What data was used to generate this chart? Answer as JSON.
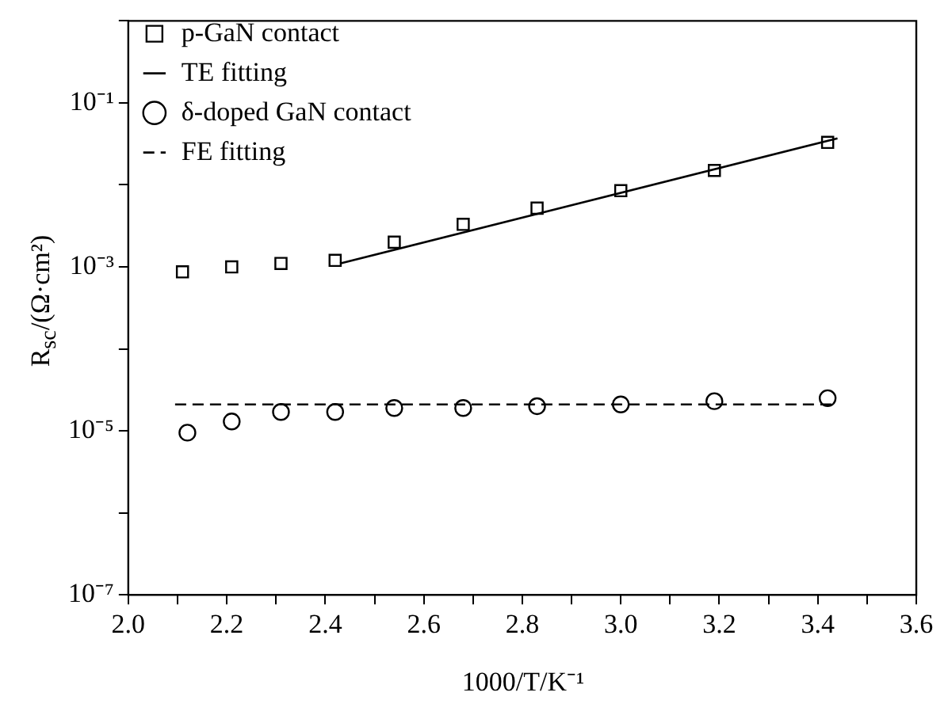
{
  "chart_data": {
    "type": "scatter",
    "xlabel": "1000/T/K⁻¹",
    "ylabel": "R$_{sc}$/(Ω·cm²)",
    "series": [
      {
        "name": "p-GaN contact",
        "marker": "square",
        "color": "#000000",
        "x": [
          2.11,
          2.21,
          2.31,
          2.42,
          2.54,
          2.68,
          2.83,
          3.0,
          3.19,
          3.42
        ],
        "values": [
          0.00087,
          0.001,
          0.0011,
          0.0012,
          0.002,
          0.0033,
          0.0052,
          0.0085,
          0.015,
          0.033
        ]
      },
      {
        "name": "TE fitting",
        "type": "line",
        "marker": "none",
        "line_style": "solid",
        "color": "#000000",
        "x": [
          2.43,
          3.44
        ],
        "values": [
          0.0011,
          0.037
        ]
      },
      {
        "name": "δ-doped GaN contact",
        "marker": "circle",
        "color": "#000000",
        "x": [
          2.12,
          2.21,
          2.31,
          2.42,
          2.54,
          2.68,
          2.83,
          3.0,
          3.19,
          3.42
        ],
        "values": [
          9.5e-06,
          1.3e-05,
          1.7e-05,
          1.7e-05,
          1.9e-05,
          1.9e-05,
          2e-05,
          2.1e-05,
          2.3e-05,
          2.5e-05
        ]
      },
      {
        "name": "FE fitting",
        "type": "line",
        "marker": "none",
        "line_style": "dashed",
        "color": "#000000",
        "x": [
          2.095,
          3.44
        ],
        "values": [
          2.1e-05,
          2.1e-05
        ]
      }
    ],
    "log": "y",
    "xlim": [
      2.0,
      3.6
    ],
    "xticks": [
      {
        "value": 2.0,
        "label": "2.0"
      },
      {
        "value": 2.1,
        "label": null
      },
      {
        "value": 2.2,
        "label": "2.2"
      },
      {
        "value": 2.3,
        "label": null
      },
      {
        "value": 2.4,
        "label": "2.4"
      },
      {
        "value": 2.5,
        "label": null
      },
      {
        "value": 2.6,
        "label": "2.6"
      },
      {
        "value": 2.7,
        "label": null
      },
      {
        "value": 2.8,
        "label": "2.8"
      },
      {
        "value": 2.9,
        "label": null
      },
      {
        "value": 3.0,
        "label": "3.0"
      },
      {
        "value": 3.1,
        "label": null
      },
      {
        "value": 3.2,
        "label": "3.2"
      },
      {
        "value": 3.3,
        "label": null
      },
      {
        "value": 3.4,
        "label": "3.4"
      },
      {
        "value": 3.5,
        "label": null
      },
      {
        "value": 3.6,
        "label": "3.6"
      }
    ],
    "ylim": [
      1e-07,
      1
    ],
    "yticks": [
      {
        "value": 1e-07,
        "label": "10⁻⁷"
      },
      {
        "value": 1e-06,
        "label": null
      },
      {
        "value": 1e-05,
        "label": "10⁻⁵"
      },
      {
        "value": 0.0001,
        "label": null
      },
      {
        "value": 0.001,
        "label": "10⁻³"
      },
      {
        "value": 0.01,
        "label": null
      },
      {
        "value": 0.1,
        "label": "10⁻¹"
      },
      {
        "value": 1,
        "label": null
      }
    ],
    "grid": false,
    "legend": "top left"
  }
}
